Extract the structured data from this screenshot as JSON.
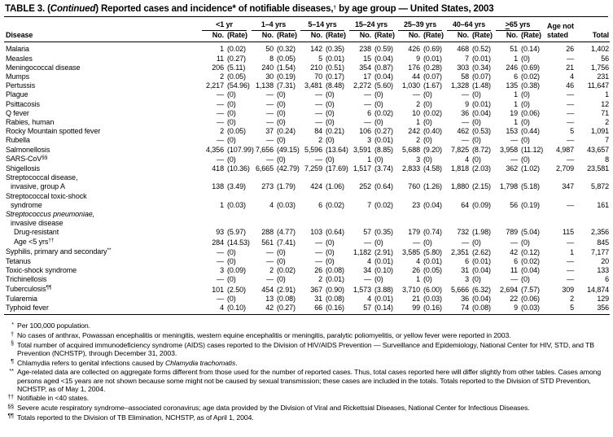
{
  "title": {
    "parts": [
      {
        "t": "TABLE 3. ("
      },
      {
        "t": "Continued",
        "italic": true
      },
      {
        "t": ") Reported cases and incidence* of notifiable diseases,"
      },
      {
        "t": "†",
        "sup": true
      },
      {
        "t": " by age group — United States, 2003"
      }
    ]
  },
  "table": {
    "disease_header": "Disease",
    "sub_no": "No.",
    "sub_rate": "(Rate)",
    "age_not_stated_header_line1": "Age not",
    "age_not_stated_header_line2": "stated",
    "total_header": "Total",
    "age_groups": [
      {
        "parts": [
          {
            "t": "<1 yr"
          }
        ]
      },
      {
        "parts": [
          {
            "t": "1–4 yrs"
          }
        ]
      },
      {
        "parts": [
          {
            "t": "5–14 yrs"
          }
        ]
      },
      {
        "parts": [
          {
            "t": "15–24 yrs"
          }
        ]
      },
      {
        "parts": [
          {
            "t": "25–39 yrs"
          }
        ]
      },
      {
        "parts": [
          {
            "t": "40–64 yrs"
          }
        ]
      },
      {
        "parts": [
          {
            "t": ">",
            "underline": true
          },
          {
            "t": "65 yrs"
          }
        ]
      }
    ],
    "rows": [
      {
        "label": [
          {
            "t": "Malaria"
          }
        ],
        "cells": [
          [
            "1",
            "(0.02)"
          ],
          [
            "50",
            "(0.32)"
          ],
          [
            "142",
            "(0.35)"
          ],
          [
            "238",
            "(0.59)"
          ],
          [
            "426",
            "(0.69)"
          ],
          [
            "468",
            "(0.52)"
          ],
          [
            "51",
            "(0.14)"
          ]
        ],
        "ans": "26",
        "total": "1,402"
      },
      {
        "label": [
          {
            "t": "Measles"
          }
        ],
        "cells": [
          [
            "11",
            "(0.27)"
          ],
          [
            "8",
            "(0.05)"
          ],
          [
            "5",
            "(0.01)"
          ],
          [
            "15",
            "(0.04)"
          ],
          [
            "9",
            "(0.01)"
          ],
          [
            "7",
            "(0.01)"
          ],
          [
            "1",
            "(0)"
          ]
        ],
        "ans": "—",
        "total": "56"
      },
      {
        "label": [
          {
            "t": "Meningococcal disease"
          }
        ],
        "cells": [
          [
            "206",
            "(5.11)"
          ],
          [
            "240",
            "(1.54)"
          ],
          [
            "210",
            "(0.51)"
          ],
          [
            "354",
            "(0.87)"
          ],
          [
            "176",
            "(0.28)"
          ],
          [
            "303",
            "(0.34)"
          ],
          [
            "246",
            "(0.69)"
          ]
        ],
        "ans": "21",
        "total": "1,756"
      },
      {
        "label": [
          {
            "t": "Mumps"
          }
        ],
        "cells": [
          [
            "2",
            "(0.05)"
          ],
          [
            "30",
            "(0.19)"
          ],
          [
            "70",
            "(0.17)"
          ],
          [
            "17",
            "(0.04)"
          ],
          [
            "44",
            "(0.07)"
          ],
          [
            "58",
            "(0.07)"
          ],
          [
            "6",
            "(0.02)"
          ]
        ],
        "ans": "4",
        "total": "231"
      },
      {
        "label": [
          {
            "t": "Pertussis"
          }
        ],
        "cells": [
          [
            "2,217",
            "(54.96)"
          ],
          [
            "1,138",
            "(7.31)"
          ],
          [
            "3,481",
            "(8.48)"
          ],
          [
            "2,272",
            "(5.60)"
          ],
          [
            "1,030",
            "(1.67)"
          ],
          [
            "1,328",
            "(1.48)"
          ],
          [
            "135",
            "(0.38)"
          ]
        ],
        "ans": "46",
        "total": "11,647"
      },
      {
        "label": [
          {
            "t": "Plague"
          }
        ],
        "cells": [
          [
            "—",
            "(0)"
          ],
          [
            "—",
            "(0)"
          ],
          [
            "—",
            "(0)"
          ],
          [
            "—",
            "(0)"
          ],
          [
            "—",
            "(0)"
          ],
          [
            "—",
            "(0)"
          ],
          [
            "1",
            "(0)"
          ]
        ],
        "ans": "—",
        "total": "1"
      },
      {
        "label": [
          {
            "t": "Psittacosis"
          }
        ],
        "cells": [
          [
            "—",
            "(0)"
          ],
          [
            "—",
            "(0)"
          ],
          [
            "—",
            "(0)"
          ],
          [
            "—",
            "(0)"
          ],
          [
            "2",
            "(0)"
          ],
          [
            "9",
            "(0.01)"
          ],
          [
            "1",
            "(0)"
          ]
        ],
        "ans": "—",
        "total": "12"
      },
      {
        "label": [
          {
            "t": "Q fever"
          }
        ],
        "cells": [
          [
            "—",
            "(0)"
          ],
          [
            "—",
            "(0)"
          ],
          [
            "—",
            "(0)"
          ],
          [
            "6",
            "(0.02)"
          ],
          [
            "10",
            "(0.02)"
          ],
          [
            "36",
            "(0.04)"
          ],
          [
            "19",
            "(0.06)"
          ]
        ],
        "ans": "—",
        "total": "71"
      },
      {
        "label": [
          {
            "t": "Rabies, human"
          }
        ],
        "cells": [
          [
            "—",
            "(0)"
          ],
          [
            "—",
            "(0)"
          ],
          [
            "—",
            "(0)"
          ],
          [
            "—",
            "(0)"
          ],
          [
            "1",
            "(0)"
          ],
          [
            "—",
            "(0)"
          ],
          [
            "1",
            "(0)"
          ]
        ],
        "ans": "—",
        "total": "2"
      },
      {
        "label": [
          {
            "t": "Rocky Mountain spotted fever"
          }
        ],
        "cells": [
          [
            "2",
            "(0.05)"
          ],
          [
            "37",
            "(0.24)"
          ],
          [
            "84",
            "(0.21)"
          ],
          [
            "106",
            "(0.27)"
          ],
          [
            "242",
            "(0.40)"
          ],
          [
            "462",
            "(0.53)"
          ],
          [
            "153",
            "(0.44)"
          ]
        ],
        "ans": "5",
        "total": "1,091"
      },
      {
        "label": [
          {
            "t": "Rubella"
          }
        ],
        "cells": [
          [
            "—",
            "(0)"
          ],
          [
            "—",
            "(0)"
          ],
          [
            "2",
            "(0)"
          ],
          [
            "3",
            "(0.01)"
          ],
          [
            "2",
            "(0)"
          ],
          [
            "—",
            "(0)"
          ],
          [
            "—",
            "(0)"
          ]
        ],
        "ans": "—",
        "total": "7"
      },
      {
        "label": [
          {
            "t": "Salmonellosis"
          }
        ],
        "cells": [
          [
            "4,356",
            "(107.99)"
          ],
          [
            "7,656",
            "(49.15)"
          ],
          [
            "5,596",
            "(13.64)"
          ],
          [
            "3,591",
            "(8.85)"
          ],
          [
            "5,688",
            "(9.20)"
          ],
          [
            "7,825",
            "(8.72)"
          ],
          [
            "3,958",
            "(11.12)"
          ]
        ],
        "ans": "4,987",
        "total": "43,657"
      },
      {
        "label": [
          {
            "t": "SARS-CoV"
          },
          {
            "t": "§§",
            "sup": true
          }
        ],
        "cells": [
          [
            "—",
            "(0)"
          ],
          [
            "—",
            "(0)"
          ],
          [
            "—",
            "(0)"
          ],
          [
            "1",
            "(0)"
          ],
          [
            "3",
            "(0)"
          ],
          [
            "4",
            "(0)"
          ],
          [
            "—",
            "(0)"
          ]
        ],
        "ans": "—",
        "total": "8"
      },
      {
        "label": [
          {
            "t": "Shigellosis"
          }
        ],
        "cells": [
          [
            "418",
            "(10.36)"
          ],
          [
            "6,665",
            "(42.79)"
          ],
          [
            "7,259",
            "(17.69)"
          ],
          [
            "1,517",
            "(3.74)"
          ],
          [
            "2,833",
            "(4.58)"
          ],
          [
            "1,818",
            "(2.03)"
          ],
          [
            "362",
            "(1.02)"
          ]
        ],
        "ans": "2,709",
        "total": "23,581"
      },
      {
        "label": [
          {
            "t": "Streptococcal disease,"
          }
        ],
        "label2": [
          {
            "t": "invasive, group A"
          }
        ],
        "cells": [
          [
            "138",
            "(3.49)"
          ],
          [
            "273",
            "(1.79)"
          ],
          [
            "424",
            "(1.06)"
          ],
          [
            "252",
            "(0.64)"
          ],
          [
            "760",
            "(1.26)"
          ],
          [
            "1,880",
            "(2.15)"
          ],
          [
            "1,798",
            "(5.18)"
          ]
        ],
        "ans": "347",
        "total": "5,872"
      },
      {
        "label": [
          {
            "t": "Streptococcal toxic-shock"
          }
        ],
        "label2": [
          {
            "t": "syndrome"
          }
        ],
        "cells": [
          [
            "1",
            "(0.03)"
          ],
          [
            "4",
            "(0.03)"
          ],
          [
            "6",
            "(0.02)"
          ],
          [
            "7",
            "(0.02)"
          ],
          [
            "23",
            "(0.04)"
          ],
          [
            "64",
            "(0.09)"
          ],
          [
            "56",
            "(0.19)"
          ]
        ],
        "ans": "—",
        "total": "161"
      },
      {
        "label": [
          {
            "t": "Streptococcus pneumoniae,",
            "italic": true
          }
        ],
        "label2": [
          {
            "t": "invasive disease"
          }
        ],
        "cells": null,
        "ans": "",
        "total": ""
      },
      {
        "label": [
          {
            "t": "Drug-resistant"
          }
        ],
        "indent": 1,
        "cells": [
          [
            "93",
            "(5.97)"
          ],
          [
            "288",
            "(4.77)"
          ],
          [
            "103",
            "(0.64)"
          ],
          [
            "57",
            "(0.35)"
          ],
          [
            "179",
            "(0.74)"
          ],
          [
            "732",
            "(1.98)"
          ],
          [
            "789",
            "(5.04)"
          ]
        ],
        "ans": "115",
        "total": "2,356"
      },
      {
        "label": [
          {
            "t": "Age <5 yrs"
          },
          {
            "t": "††",
            "sup": true
          }
        ],
        "indent": 1,
        "cells": [
          [
            "284",
            "(14.53)"
          ],
          [
            "561",
            "(7.41)"
          ],
          [
            "—",
            "(0)"
          ],
          [
            "—",
            "(0)"
          ],
          [
            "—",
            "(0)"
          ],
          [
            "—",
            "(0)"
          ],
          [
            "—",
            "(0)"
          ]
        ],
        "ans": "—",
        "total": "845"
      },
      {
        "label": [
          {
            "t": "Syphilis, primary and secondary"
          },
          {
            "t": "**",
            "sup": true
          }
        ],
        "cells": [
          [
            "—",
            "(0)"
          ],
          [
            "—",
            "(0)"
          ],
          [
            "—",
            "(0)"
          ],
          [
            "1,182",
            "(2.91)"
          ],
          [
            "3,585",
            "(5.80)"
          ],
          [
            "2,351",
            "(2.62)"
          ],
          [
            "42",
            "(0.12)"
          ]
        ],
        "ans": "1",
        "total": "7,177"
      },
      {
        "label": [
          {
            "t": "Tetanus"
          }
        ],
        "cells": [
          [
            "—",
            "(0)"
          ],
          [
            "—",
            "(0)"
          ],
          [
            "—",
            "(0)"
          ],
          [
            "4",
            "(0.01)"
          ],
          [
            "4",
            "(0.01)"
          ],
          [
            "6",
            "(0.01)"
          ],
          [
            "6",
            "(0.02)"
          ]
        ],
        "ans": "—",
        "total": "20"
      },
      {
        "label": [
          {
            "t": "Toxic-shock syndrome"
          }
        ],
        "cells": [
          [
            "3",
            "(0.09)"
          ],
          [
            "2",
            "(0.02)"
          ],
          [
            "26",
            "(0.08)"
          ],
          [
            "34",
            "(0.10)"
          ],
          [
            "26",
            "(0.05)"
          ],
          [
            "31",
            "(0.04)"
          ],
          [
            "11",
            "(0.04)"
          ]
        ],
        "ans": "—",
        "total": "133"
      },
      {
        "label": [
          {
            "t": "Trichinellosis"
          }
        ],
        "cells": [
          [
            "—",
            "(0)"
          ],
          [
            "—",
            "(0)"
          ],
          [
            "2",
            "(0.01)"
          ],
          [
            "—",
            "(0)"
          ],
          [
            "1",
            "(0)"
          ],
          [
            "3",
            "(0)"
          ],
          [
            "—",
            "(0)"
          ]
        ],
        "ans": "—",
        "total": "6"
      },
      {
        "label": [
          {
            "t": "Tuberculosis"
          },
          {
            "t": "¶¶",
            "sup": true
          }
        ],
        "cells": [
          [
            "101",
            "(2.50)"
          ],
          [
            "454",
            "(2.91)"
          ],
          [
            "367",
            "(0.90)"
          ],
          [
            "1,573",
            "(3.88)"
          ],
          [
            "3,710",
            "(6.00)"
          ],
          [
            "5,666",
            "(6.32)"
          ],
          [
            "2,694",
            "(7.57)"
          ]
        ],
        "ans": "309",
        "total": "14,874"
      },
      {
        "label": [
          {
            "t": "Tularemia"
          }
        ],
        "cells": [
          [
            "—",
            "(0)"
          ],
          [
            "13",
            "(0.08)"
          ],
          [
            "31",
            "(0.08)"
          ],
          [
            "4",
            "(0.01)"
          ],
          [
            "21",
            "(0.03)"
          ],
          [
            "36",
            "(0.04)"
          ],
          [
            "22",
            "(0.06)"
          ]
        ],
        "ans": "2",
        "total": "129"
      },
      {
        "label": [
          {
            "t": "Typhoid fever"
          }
        ],
        "cells": [
          [
            "4",
            "(0.10)"
          ],
          [
            "42",
            "(0.27)"
          ],
          [
            "66",
            "(0.16)"
          ],
          [
            "57",
            "(0.14)"
          ],
          [
            "99",
            "(0.16)"
          ],
          [
            "74",
            "(0.08)"
          ],
          [
            "9",
            "(0.03)"
          ]
        ],
        "ans": "5",
        "total": "356"
      }
    ]
  },
  "footnotes": [
    {
      "marker": "*",
      "parts": [
        {
          "t": "Per 100,000 population."
        }
      ]
    },
    {
      "marker": "†",
      "parts": [
        {
          "t": "No cases of anthrax, Powassan encephalitis or meningitis, western equine encephalitis or meningitis, paralytic poliomyelitis, or yellow fever were reported in 2003."
        }
      ]
    },
    {
      "marker": "§",
      "parts": [
        {
          "t": "Total number of acquired immunodeficiency syndrome (AIDS) cases reported to the Division of HIV/AIDS Prevention — Surveillance and Epidemiology, National Center for HIV, STD, and TB Prevention (NCHSTP), through December 31, 2003."
        }
      ]
    },
    {
      "marker": "¶",
      "parts": [
        {
          "t": "Chlamydia refers to genital infections caused by "
        },
        {
          "t": "Chlamydia trachomatis",
          "italic": true
        },
        {
          "t": "."
        }
      ]
    },
    {
      "marker": "**",
      "parts": [
        {
          "t": "Age-related data are collected on aggregate forms different from those used for the number of reported cases. Thus, total cases reported here will differ slightly from other tables. Cases among persons aged <15 years are not shown because some might not be caused by sexual transmission; these cases are included in the totals. Totals reported to the Division of STD Prevention, NCHSTP, as of May 1, 2004."
        }
      ]
    },
    {
      "marker": "††",
      "parts": [
        {
          "t": "Notifiable in <40 states."
        }
      ]
    },
    {
      "marker": "§§",
      "parts": [
        {
          "t": "Severe acute respiratory syndrome–associated coronavirus; age data provided by the Division of Viral and Rickettsial Diseases, National Center for Infectious Diseases."
        }
      ]
    },
    {
      "marker": "¶¶",
      "parts": [
        {
          "t": "Totals reported to the Division of TB Elimination, NCHSTP, as of April 1, 2004."
        }
      ]
    }
  ]
}
